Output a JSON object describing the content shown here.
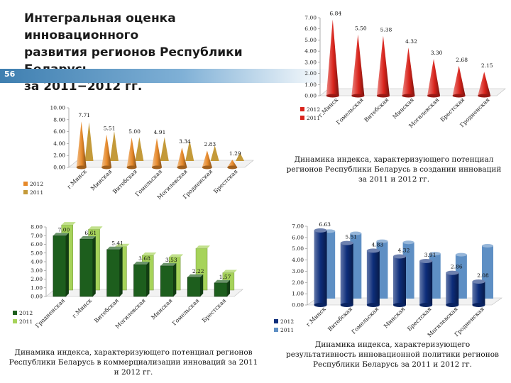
{
  "header": {
    "title_lines": [
      "Интегральная оценка инновационного",
      "развития регионов Республики Беларусь",
      "за 2011−2012 гг."
    ],
    "page_number": "56"
  },
  "chart_data": [
    {
      "id": "integral",
      "type": "bar",
      "style": "cone",
      "categories": [
        "г.Минск",
        "Гомельская",
        "Витебская",
        "Минская",
        "Могилевская",
        "Брестская",
        "Гродненская"
      ],
      "series": [
        {
          "name": "2011",
          "values": [
            0.5,
            0.5,
            0.5,
            0.5,
            0.5,
            0.5,
            0.5
          ],
          "color": "#d9241c"
        }
      ],
      "data_labels": [
        "6.84",
        "5.50",
        "5.38",
        "4.32",
        "3.30",
        "2.68",
        "2.15"
      ],
      "legend": [
        "2012",
        "2011"
      ],
      "yticks": [
        "0.00",
        "1.00",
        "2.00",
        "3.00",
        "4.00",
        "5.00",
        "6.00",
        "7.00"
      ],
      "ylim": [
        0,
        7
      ],
      "values_2012": [
        6.84,
        5.5,
        5.38,
        4.32,
        3.3,
        2.68,
        2.15
      ],
      "caption": ""
    },
    {
      "id": "creation",
      "type": "bar",
      "style": "cone",
      "categories": [
        "г.Минск",
        "Минская",
        "Витебская",
        "Гомельская",
        "Могилевская",
        "Гродненская",
        "Брестская"
      ],
      "series": [
        {
          "name": "2012",
          "values": [
            7.71,
            5.51,
            5.0,
            4.91,
            3.34,
            2.83,
            1.29
          ],
          "color": "#e6892a"
        },
        {
          "name": "2011",
          "values": [
            6.5,
            5.0,
            4.0,
            4.0,
            3.5,
            2.6,
            1.4
          ],
          "color": "#c49a3a"
        }
      ],
      "data_labels": [
        "7.71",
        "5.51",
        "5.00",
        "4.91",
        "3.34",
        "2.83",
        "1.29"
      ],
      "legend": [
        "2012",
        "2011"
      ],
      "yticks": [
        "0.00",
        "2.00",
        "4.00",
        "6.00",
        "8.00",
        "10.00"
      ],
      "ylim": [
        0,
        10
      ],
      "caption": "Динамика индекса, характеризующего потенциал регионов Республики Беларусь в создании инноваций за 2011 и 2012 гг."
    },
    {
      "id": "commercial",
      "type": "bar",
      "style": "box",
      "categories": [
        "Гродненская",
        "г.Минск",
        "Витебская",
        "Могилевская",
        "Минская",
        "Гомельская",
        "Брестская"
      ],
      "series": [
        {
          "name": "2012",
          "values": [
            7.0,
            6.61,
            5.41,
            3.68,
            3.53,
            2.22,
            1.57
          ],
          "color": "#1d5e1d"
        },
        {
          "name": "2011",
          "values": [
            7.5,
            7.0,
            5.0,
            4.0,
            3.8,
            4.8,
            2.0
          ],
          "color": "#a6d35a"
        }
      ],
      "data_labels": [
        "7.00",
        "6.61",
        "5.41",
        "3.68",
        "3.53",
        "2.22",
        "1.57"
      ],
      "legend": [
        "2012",
        "2011"
      ],
      "yticks": [
        "0.00",
        "1.00",
        "2.00",
        "3.00",
        "4.00",
        "5.00",
        "6.00",
        "7.00",
        "8.00"
      ],
      "ylim": [
        0,
        8
      ],
      "caption": "Динамика индекса, характеризующего потенциал регионов Республики Беларусь в коммерциализации инноваций за 2011 и 2012 гг."
    },
    {
      "id": "policy",
      "type": "bar",
      "style": "cylinder",
      "categories": [
        "г.Минск",
        "Витебская",
        "Гомельская",
        "Минская",
        "Брестская",
        "Могилевская",
        "Гродненская"
      ],
      "series": [
        {
          "name": "2012",
          "values": [
            6.63,
            5.51,
            4.83,
            4.32,
            3.91,
            2.86,
            2.08
          ],
          "color": "#0d2d7a"
        },
        {
          "name": "2011",
          "values": [
            6.0,
            5.8,
            5.1,
            5.0,
            4.0,
            3.9,
            4.7
          ],
          "color": "#5e8fc4"
        }
      ],
      "data_labels": [
        "6.63",
        "5.51",
        "4.83",
        "4.32",
        "3.91",
        "2.86",
        "2.08"
      ],
      "legend": [
        "2012",
        "2011"
      ],
      "yticks": [
        "0.00",
        "1.00",
        "2.00",
        "3.00",
        "4.00",
        "5.00",
        "6.00",
        "7.00"
      ],
      "ylim": [
        0,
        7
      ],
      "caption": "Динамика индекса, характеризующего результативность инновационной политики регионов Республики Беларусь за 2011 и 2012 гг."
    }
  ]
}
